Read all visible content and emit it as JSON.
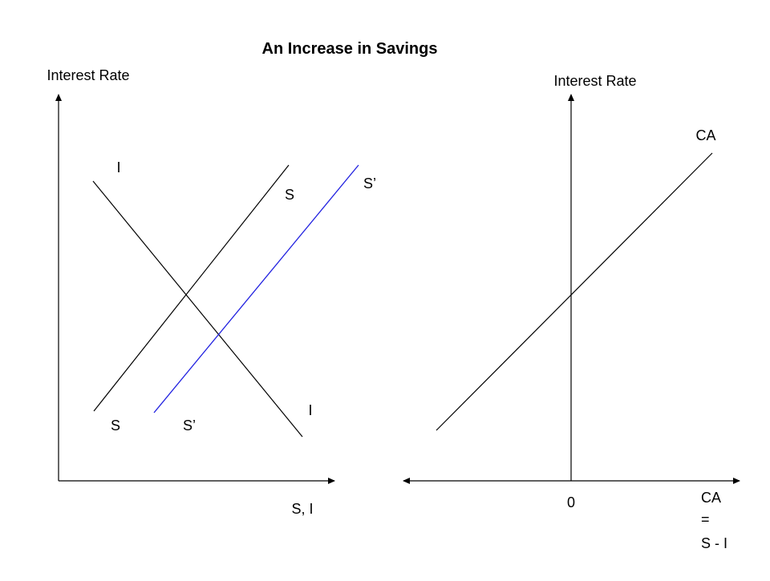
{
  "title": "An Increase in Savings",
  "colors": {
    "lines": "#000000",
    "shifted_savings": "#2020e0",
    "background": "#ffffff"
  },
  "left_panel": {
    "y_axis_label": "Interest Rate",
    "x_axis_label": "S, I",
    "investment_label_top": "I",
    "investment_label_bottom": "I",
    "savings_label_top": "S",
    "savings_label_bottom": "S",
    "new_savings_label_top": "S’",
    "new_savings_label_bottom": "S’"
  },
  "right_panel": {
    "y_axis_label": "Interest Rate",
    "curve_label": "CA",
    "origin_label": "0",
    "x_axis_label_line1": "CA",
    "x_axis_label_line2": "=",
    "x_axis_label_line3": "S - I"
  }
}
